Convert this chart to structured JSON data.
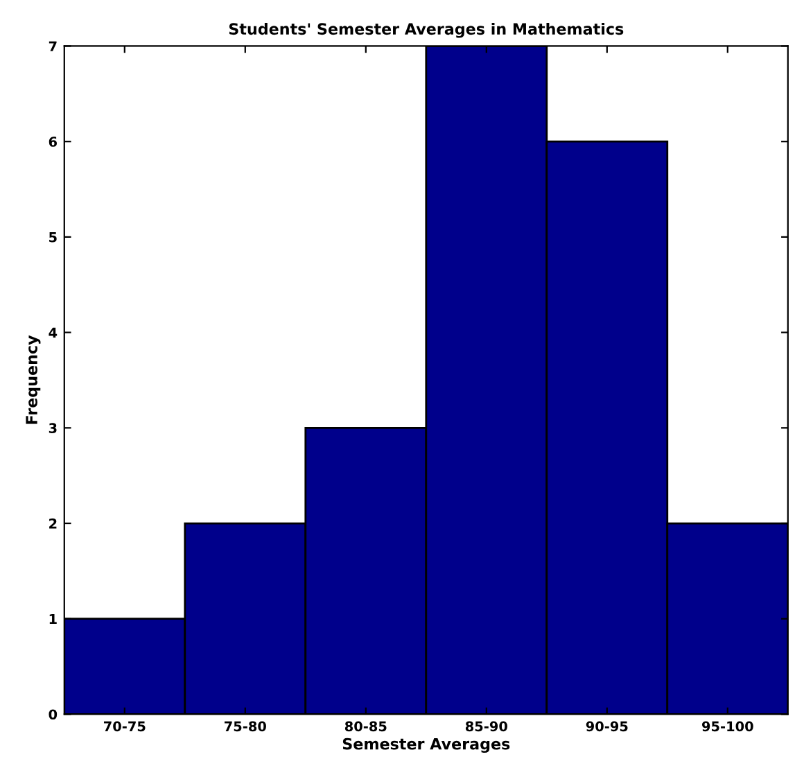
{
  "chart_data": {
    "type": "bar",
    "title": "Students' Semester Averages in Mathematics",
    "xlabel": "Semester Averages",
    "ylabel": "Frequency",
    "categories": [
      "70-75",
      "75-80",
      "80-85",
      "85-90",
      "90-95",
      "95-100"
    ],
    "values": [
      1,
      2,
      3,
      7,
      6,
      2
    ],
    "color": "#00008b",
    "ylim": [
      0,
      7
    ],
    "yticks": [
      0,
      1,
      2,
      3,
      4,
      5,
      6,
      7
    ],
    "grid": false
  }
}
